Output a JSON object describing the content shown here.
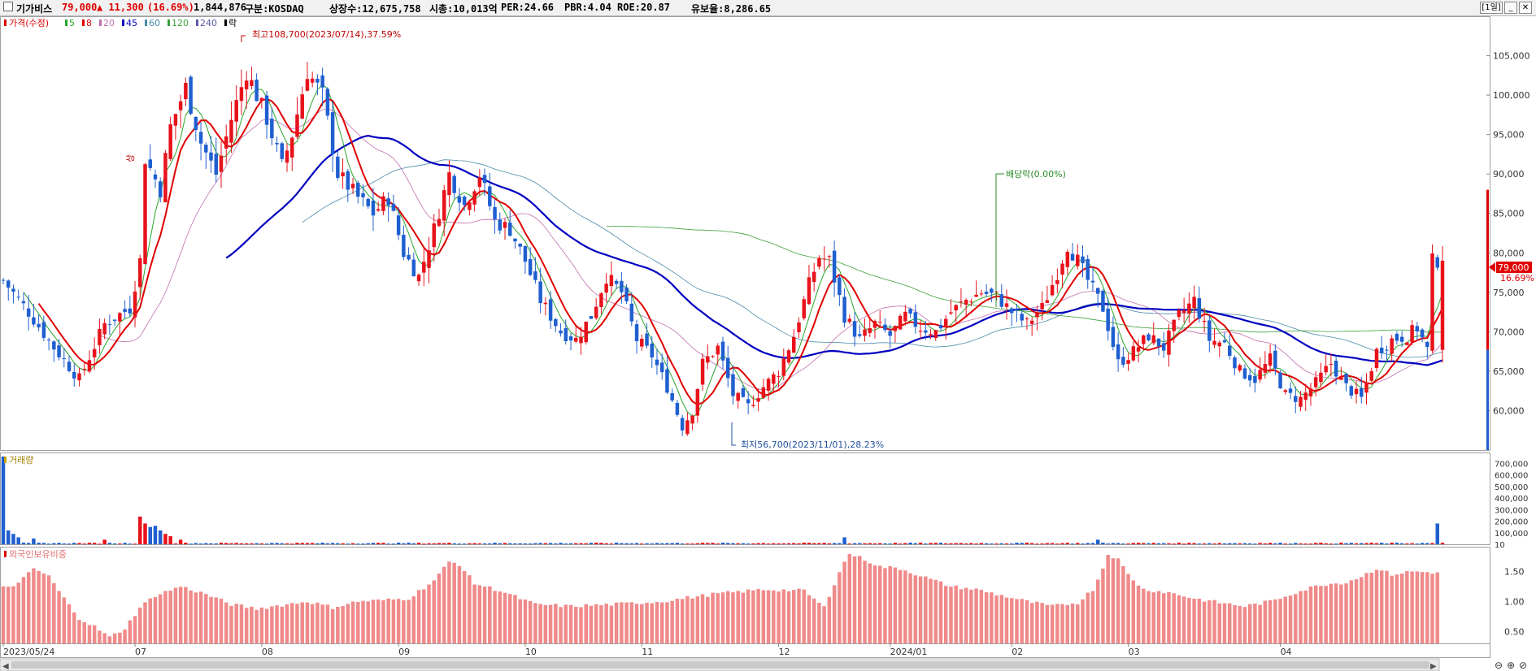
{
  "header": {
    "name": "기가비스",
    "price": "79,000",
    "change": "▲ 11,300",
    "change_pct": "(16.69%)",
    "volume": "1,844,876",
    "market": "구분:KOSDAQ",
    "shares": "상장수:12,675,758",
    "mcap": "시총:10,013억",
    "per": "PER:24.66",
    "pbr": "PBR:4.04",
    "roe": "ROE:20.87",
    "float": "유보율:8,286.65",
    "period_button": "[1일]",
    "minimize": "_",
    "close": "✕"
  },
  "price_legend": {
    "title": "가격(수정)",
    "items": [
      {
        "label": "5",
        "color": "#2aa52a"
      },
      {
        "label": "8",
        "color": "#e00000"
      },
      {
        "label": "20",
        "color": "#c070b0"
      },
      {
        "label": "45",
        "color": "#0000c0"
      },
      {
        "label": "60",
        "color": "#4a8aa8"
      },
      {
        "label": "120",
        "color": "#3aa03a"
      },
      {
        "label": "240",
        "color": "#5a5aa8"
      },
      {
        "label": "락",
        "color": "#000000"
      }
    ]
  },
  "annotations": {
    "high": "최고108,700(2023/07/14),37.59%",
    "low": "최저56,700(2023/11/01),28.23%",
    "dividend": "배당락(0.00%)",
    "limit_up": "상"
  },
  "last_price_label": "79,000",
  "last_pct_label": "16.69%",
  "volume_panel": {
    "title": "거래량"
  },
  "foreign_panel": {
    "title": "외국인보유비중"
  },
  "colors": {
    "up": "#e8121b",
    "down": "#1f5fd0",
    "foreign_bar": "#f08a8a"
  },
  "chart_data": [
    {
      "type": "candlestick",
      "title": "가격(수정)",
      "ylim": [
        55000,
        110000
      ],
      "y_ticks": [
        60000,
        65000,
        70000,
        75000,
        80000,
        85000,
        90000,
        95000,
        100000,
        105000
      ],
      "y_tick_labels": [
        "60,000",
        "65,000",
        "70,000",
        "75,000",
        "80,000",
        "85,000",
        "90,000",
        "95,000",
        "100,000",
        "105,000"
      ],
      "x_labels": [
        "2023/05/24",
        "07",
        "08",
        "09",
        "10",
        "11",
        "12",
        "2024/01",
        "02",
        "03",
        "04"
      ],
      "series": [
        {
          "name": "5",
          "note": "moving average"
        },
        {
          "name": "8",
          "note": "moving average"
        },
        {
          "name": "20",
          "note": "moving average"
        },
        {
          "name": "45",
          "note": "moving average"
        },
        {
          "name": "60",
          "note": "moving average"
        },
        {
          "name": "120",
          "note": "moving average"
        },
        {
          "name": "240",
          "note": "moving average"
        }
      ],
      "close_profile": [
        [
          0,
          76500
        ],
        [
          5,
          72500
        ],
        [
          10,
          68000
        ],
        [
          15,
          64000
        ],
        [
          20,
          71000
        ],
        [
          25,
          73000
        ],
        [
          27,
          79000
        ],
        [
          28,
          92000
        ],
        [
          31,
          88000
        ],
        [
          33,
          96000
        ],
        [
          36,
          101000
        ],
        [
          39,
          94000
        ],
        [
          42,
          90000
        ],
        [
          45,
          97000
        ],
        [
          48,
          103000
        ],
        [
          52,
          97000
        ],
        [
          55,
          91000
        ],
        [
          57,
          95000
        ],
        [
          60,
          103000
        ],
        [
          63,
          100000
        ],
        [
          66,
          90000
        ],
        [
          70,
          87000
        ],
        [
          73,
          85000
        ],
        [
          76,
          87000
        ],
        [
          79,
          80000
        ],
        [
          82,
          77000
        ],
        [
          85,
          83000
        ],
        [
          88,
          90000
        ],
        [
          91,
          86000
        ],
        [
          94,
          90000
        ],
        [
          97,
          84000
        ],
        [
          100,
          83000
        ],
        [
          103,
          79000
        ],
        [
          106,
          74000
        ],
        [
          110,
          70000
        ],
        [
          113,
          69000
        ],
        [
          116,
          72000
        ],
        [
          119,
          77000
        ],
        [
          122,
          75000
        ],
        [
          125,
          69000
        ],
        [
          128,
          67000
        ],
        [
          131,
          63000
        ],
        [
          134,
          58000
        ],
        [
          136,
          60000
        ],
        [
          138,
          66000
        ],
        [
          141,
          68000
        ],
        [
          144,
          62000
        ],
        [
          147,
          60500
        ],
        [
          150,
          63000
        ],
        [
          153,
          65000
        ],
        [
          156,
          69500
        ],
        [
          159,
          76000
        ],
        [
          161,
          79500
        ],
        [
          163,
          79000
        ],
        [
          166,
          72000
        ],
        [
          169,
          69000
        ],
        [
          172,
          71000
        ],
        [
          175,
          69500
        ],
        [
          178,
          72000
        ],
        [
          181,
          70500
        ],
        [
          184,
          70000
        ],
        [
          187,
          72500
        ],
        [
          190,
          74000
        ],
        [
          193,
          75000
        ],
        [
          196,
          74500
        ],
        [
          199,
          72500
        ],
        [
          202,
          71000
        ],
        [
          205,
          73000
        ],
        [
          208,
          77500
        ],
        [
          210,
          81000
        ],
        [
          212,
          79000
        ],
        [
          214,
          76500
        ],
        [
          217,
          73000
        ],
        [
          220,
          66000
        ],
        [
          223,
          67500
        ],
        [
          226,
          69500
        ],
        [
          229,
          68000
        ],
        [
          232,
          72000
        ],
        [
          235,
          74000
        ],
        [
          238,
          69000
        ],
        [
          241,
          68500
        ],
        [
          244,
          65000
        ],
        [
          247,
          64000
        ],
        [
          250,
          66500
        ],
        [
          253,
          62000
        ],
        [
          256,
          61500
        ],
        [
          259,
          63500
        ],
        [
          262,
          66000
        ],
        [
          265,
          63000
        ],
        [
          268,
          61500
        ],
        [
          271,
          67500
        ],
        [
          274,
          69000
        ],
        [
          277,
          69500
        ],
        [
          279,
          70500
        ],
        [
          281,
          67700
        ],
        [
          282,
          79000
        ]
      ],
      "last_close": 79000,
      "last_change": 11300,
      "last_change_pct": 16.69,
      "annotated_high": 108700,
      "annotated_high_date": "2023/07/14",
      "annotated_low": 56700,
      "annotated_low_date": "2023/11/01"
    },
    {
      "type": "bar",
      "title": "거래량",
      "ylim": [
        0,
        760000
      ],
      "y_ticks": [
        10,
        100000,
        200000,
        300000,
        400000,
        500000,
        600000,
        700000
      ],
      "y_tick_labels": [
        "10",
        "100,000",
        "200,000",
        "300,000",
        "400,000",
        "500,000",
        "600,000",
        "700,000"
      ],
      "spikes": [
        [
          0,
          760000
        ],
        [
          1,
          120000
        ],
        [
          2,
          90000
        ],
        [
          3,
          60000
        ],
        [
          6,
          50000
        ],
        [
          20,
          40000
        ],
        [
          27,
          240000
        ],
        [
          28,
          180000
        ],
        [
          29,
          150000
        ],
        [
          30,
          160000
        ],
        [
          31,
          120000
        ],
        [
          32,
          90000
        ],
        [
          33,
          70000
        ],
        [
          35,
          40000
        ],
        [
          166,
          60000
        ],
        [
          216,
          40000
        ],
        [
          283,
          180000
        ]
      ],
      "baseline": 9000,
      "last_value": 1844876
    },
    {
      "type": "bar",
      "title": "외국인보유비중",
      "ylim": [
        0.3,
        1.9
      ],
      "y_ticks": [
        0.5,
        1.0,
        1.5
      ],
      "y_tick_labels": [
        "0.50",
        "1.00",
        "1.50"
      ],
      "profile": [
        [
          0,
          1.23
        ],
        [
          3,
          1.3
        ],
        [
          6,
          1.55
        ],
        [
          9,
          1.42
        ],
        [
          12,
          1.05
        ],
        [
          15,
          0.72
        ],
        [
          18,
          0.58
        ],
        [
          21,
          0.4
        ],
        [
          24,
          0.55
        ],
        [
          27,
          0.9
        ],
        [
          30,
          1.1
        ],
        [
          35,
          1.25
        ],
        [
          40,
          1.12
        ],
        [
          45,
          0.95
        ],
        [
          50,
          0.88
        ],
        [
          55,
          0.94
        ],
        [
          60,
          1.0
        ],
        [
          65,
          0.9
        ],
        [
          70,
          1.0
        ],
        [
          75,
          1.02
        ],
        [
          80,
          1.05
        ],
        [
          85,
          1.35
        ],
        [
          88,
          1.66
        ],
        [
          90,
          1.62
        ],
        [
          93,
          1.3
        ],
        [
          98,
          1.18
        ],
        [
          105,
          0.95
        ],
        [
          112,
          0.92
        ],
        [
          120,
          0.95
        ],
        [
          130,
          1.0
        ],
        [
          140,
          1.12
        ],
        [
          150,
          1.2
        ],
        [
          158,
          1.18
        ],
        [
          162,
          0.9
        ],
        [
          165,
          1.5
        ],
        [
          167,
          1.8
        ],
        [
          170,
          1.7
        ],
        [
          173,
          1.58
        ],
        [
          177,
          1.55
        ],
        [
          182,
          1.4
        ],
        [
          187,
          1.25
        ],
        [
          192,
          1.2
        ],
        [
          197,
          1.1
        ],
        [
          202,
          1.0
        ],
        [
          207,
          0.92
        ],
        [
          212,
          0.98
        ],
        [
          215,
          1.2
        ],
        [
          217,
          1.55
        ],
        [
          218,
          1.8
        ],
        [
          220,
          1.7
        ],
        [
          222,
          1.45
        ],
        [
          225,
          1.2
        ],
        [
          230,
          1.15
        ],
        [
          235,
          1.05
        ],
        [
          240,
          0.98
        ],
        [
          245,
          0.92
        ],
        [
          250,
          1.0
        ],
        [
          255,
          1.15
        ],
        [
          260,
          1.28
        ],
        [
          265,
          1.32
        ],
        [
          268,
          1.42
        ],
        [
          271,
          1.55
        ],
        [
          274,
          1.45
        ],
        [
          278,
          1.5
        ],
        [
          283,
          1.48
        ]
      ]
    }
  ]
}
